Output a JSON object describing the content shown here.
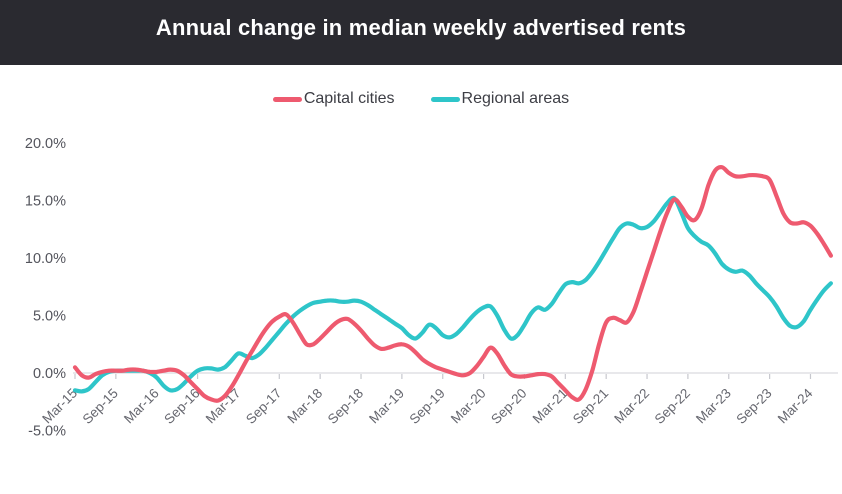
{
  "header": {
    "title": "Annual change in median weekly advertised rents",
    "background": "#2A2A30"
  },
  "legend": {
    "position": "top-center",
    "items": [
      {
        "label": "Capital cities",
        "color": "#EE5A6F"
      },
      {
        "label": "Regional areas",
        "color": "#2EC5C9"
      }
    ]
  },
  "chart_data": {
    "type": "line",
    "title": "Annual change in median weekly advertised rents",
    "x_start": "Mar-15",
    "x_interval_months": 1,
    "x_tick_every_n_points": 6,
    "x_tick_labels": [
      "Mar-15",
      "Sep-15",
      "Mar-16",
      "Sep-16",
      "Mar-17",
      "Sep-17",
      "Mar-18",
      "Sep-18",
      "Mar-19",
      "Sep-19",
      "Mar-20",
      "Sep-20",
      "Mar-21",
      "Sep-21",
      "Mar-22",
      "Sep-22",
      "Mar-23",
      "Sep-23",
      "Mar-24"
    ],
    "y_tick_labels": [
      "20.0%",
      "15.0%",
      "10.0%",
      "5.0%",
      "0.0%",
      "-5.0%"
    ],
    "y_unit": "%",
    "ylim": [
      -6.5,
      21.5
    ],
    "grid": "zero-line-only",
    "axis_color": "#DADBDF",
    "tick_color": "#C7C8CE",
    "y_label_color": "#53545C",
    "x_label_color": "#66676F",
    "series": [
      {
        "name": "Capital cities",
        "color": "#EE5A6F",
        "values": [
          0.5,
          -0.2,
          -0.4,
          -0.1,
          0.1,
          0.2,
          0.2,
          0.2,
          0.3,
          0.3,
          0.2,
          0.1,
          0.1,
          0.2,
          0.3,
          0.2,
          -0.2,
          -0.8,
          -1.4,
          -2.0,
          -2.3,
          -2.4,
          -2.0,
          -1.2,
          -0.2,
          0.9,
          1.9,
          2.9,
          3.8,
          4.5,
          4.9,
          5.1,
          4.4,
          3.4,
          2.5,
          2.5,
          3.0,
          3.6,
          4.2,
          4.6,
          4.7,
          4.3,
          3.7,
          3.0,
          2.4,
          2.1,
          2.2,
          2.4,
          2.5,
          2.3,
          1.8,
          1.2,
          0.8,
          0.5,
          0.3,
          0.1,
          -0.1,
          -0.2,
          0.0,
          0.6,
          1.4,
          2.2,
          1.7,
          0.7,
          -0.1,
          -0.3,
          -0.3,
          -0.2,
          -0.1,
          -0.1,
          -0.3,
          -0.9,
          -1.5,
          -2.1,
          -2.3,
          -1.4,
          0.3,
          2.6,
          4.4,
          4.8,
          4.6,
          4.4,
          5.3,
          7.0,
          8.8,
          10.6,
          12.4,
          14.0,
          15.1,
          14.5,
          13.6,
          13.3,
          14.3,
          16.3,
          17.6,
          17.9,
          17.4,
          17.1,
          17.1,
          17.2,
          17.2,
          17.1,
          16.8,
          15.4,
          13.9,
          13.1,
          13.0,
          13.1,
          12.8,
          12.1,
          11.2,
          10.2
        ]
      },
      {
        "name": "Regional areas",
        "color": "#2EC5C9",
        "values": [
          -1.5,
          -1.6,
          -1.4,
          -0.8,
          -0.2,
          0.1,
          0.2,
          0.2,
          0.2,
          0.2,
          0.2,
          0.0,
          -0.4,
          -1.1,
          -1.5,
          -1.4,
          -0.9,
          -0.3,
          0.2,
          0.4,
          0.4,
          0.3,
          0.5,
          1.1,
          1.7,
          1.5,
          1.3,
          1.6,
          2.2,
          2.9,
          3.6,
          4.3,
          4.9,
          5.4,
          5.8,
          6.1,
          6.2,
          6.3,
          6.3,
          6.2,
          6.2,
          6.3,
          6.2,
          5.9,
          5.5,
          5.1,
          4.7,
          4.3,
          3.9,
          3.3,
          3.0,
          3.5,
          4.2,
          3.9,
          3.3,
          3.1,
          3.4,
          4.0,
          4.7,
          5.3,
          5.7,
          5.8,
          5.0,
          3.8,
          3.0,
          3.3,
          4.2,
          5.2,
          5.7,
          5.5,
          6.0,
          6.9,
          7.7,
          7.9,
          7.8,
          8.1,
          8.8,
          9.7,
          10.7,
          11.7,
          12.6,
          13.0,
          12.9,
          12.6,
          12.7,
          13.2,
          14.0,
          14.8,
          15.2,
          14.0,
          12.6,
          11.9,
          11.4,
          11.1,
          10.4,
          9.5,
          9.0,
          8.8,
          8.9,
          8.5,
          7.8,
          7.2,
          6.6,
          5.8,
          4.8,
          4.1,
          4.0,
          4.5,
          5.5,
          6.4,
          7.2,
          7.8
        ]
      }
    ]
  }
}
